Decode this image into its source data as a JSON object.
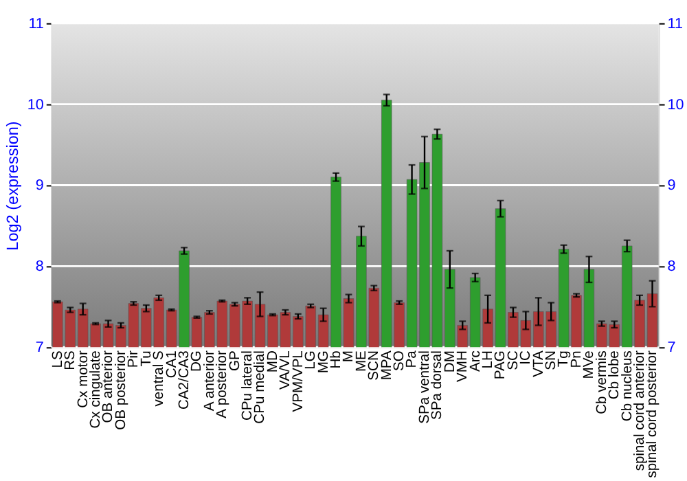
{
  "chart_data": {
    "type": "bar",
    "ylabel": "Log2 (expression)",
    "categories": [
      "LS",
      "RS",
      "Cx motor",
      "Cx cingulate",
      "OB anterior",
      "OB posterior",
      "Pir",
      "Tu",
      "ventral S",
      "CA1",
      "CA2/CA3",
      "DG",
      "A anterior",
      "A posterior",
      "GP",
      "CPu lateral",
      "CPu medial",
      "MD",
      "VA/VL",
      "VPM/VPL",
      "LG",
      "MG",
      "Hb",
      "M",
      "ME",
      "SCN",
      "MPA",
      "SO",
      "Pa",
      "SPa ventral",
      "SPa dorsal",
      "DM",
      "VMH",
      "Arc",
      "LH",
      "PAG",
      "SC",
      "IC",
      "VTA",
      "SN",
      "Tg",
      "Pn",
      "MVe",
      "Cb vermis",
      "Cb lobe",
      "Cb nucleus",
      "spinal cord anterior",
      "spinal cord posterior"
    ],
    "values": [
      7.56,
      7.46,
      7.47,
      7.29,
      7.29,
      7.27,
      7.54,
      7.48,
      7.61,
      7.46,
      8.19,
      7.37,
      7.43,
      7.57,
      7.53,
      7.57,
      7.53,
      7.4,
      7.43,
      7.38,
      7.51,
      7.4,
      9.1,
      7.6,
      8.37,
      7.73,
      10.05,
      7.55,
      9.07,
      9.28,
      9.63,
      7.96,
      7.27,
      7.86,
      7.47,
      8.71,
      7.43,
      7.33,
      7.44,
      7.44,
      8.21,
      7.64,
      7.96,
      7.29,
      7.28,
      8.25,
      7.58,
      7.66
    ],
    "errors": [
      0.01,
      0.03,
      0.07,
      0.01,
      0.04,
      0.03,
      0.02,
      0.04,
      0.03,
      0.01,
      0.04,
      0.01,
      0.02,
      0.01,
      0.02,
      0.04,
      0.15,
      0.01,
      0.03,
      0.03,
      0.02,
      0.08,
      0.05,
      0.05,
      0.12,
      0.03,
      0.07,
      0.02,
      0.18,
      0.32,
      0.06,
      0.23,
      0.05,
      0.05,
      0.17,
      0.1,
      0.06,
      0.11,
      0.17,
      0.11,
      0.05,
      0.02,
      0.16,
      0.03,
      0.04,
      0.07,
      0.06,
      0.16
    ],
    "colors": [
      "#b03a3a",
      "#b03a3a",
      "#b03a3a",
      "#b03a3a",
      "#b03a3a",
      "#b03a3a",
      "#b03a3a",
      "#b03a3a",
      "#b03a3a",
      "#b03a3a",
      "#2e9e2e",
      "#b03a3a",
      "#b03a3a",
      "#b03a3a",
      "#b03a3a",
      "#b03a3a",
      "#b03a3a",
      "#b03a3a",
      "#b03a3a",
      "#b03a3a",
      "#b03a3a",
      "#b03a3a",
      "#2e9e2e",
      "#b03a3a",
      "#2e9e2e",
      "#b03a3a",
      "#2e9e2e",
      "#b03a3a",
      "#2e9e2e",
      "#2e9e2e",
      "#2e9e2e",
      "#2e9e2e",
      "#b03a3a",
      "#2e9e2e",
      "#b03a3a",
      "#2e9e2e",
      "#b03a3a",
      "#b03a3a",
      "#b03a3a",
      "#b03a3a",
      "#2e9e2e",
      "#b03a3a",
      "#2e9e2e",
      "#b03a3a",
      "#b03a3a",
      "#2e9e2e",
      "#b03a3a",
      "#b03a3a"
    ],
    "ylim": [
      7,
      11
    ],
    "yticks": [
      7,
      8,
      9,
      10,
      11
    ],
    "y2lim": [
      7,
      11
    ],
    "y2ticks": [
      7,
      8,
      9,
      10,
      11
    ],
    "grid": "y"
  }
}
